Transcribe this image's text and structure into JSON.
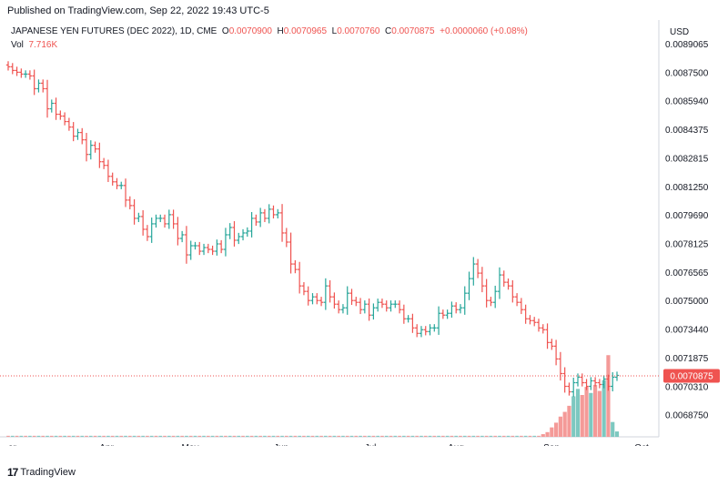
{
  "header": {
    "published": "Published on TradingView.com, Sep 22, 2022 19:43 UTC-5"
  },
  "legend": {
    "symbol": "JAPANESE YEN FUTURES (DEC 2022), 1D, CME",
    "o_label": "O",
    "o_value": "0.0070900",
    "h_label": "H",
    "h_value": "0.0070965",
    "l_label": "L",
    "l_value": "0.0070760",
    "c_label": "C",
    "c_value": "0.0070875",
    "change": "+0.0000060 (+0.08%)",
    "vol_label": "Vol",
    "vol_value": "7.716K"
  },
  "footer": {
    "brand": "TradingView",
    "logo": "17"
  },
  "colors": {
    "up": "#26a69a",
    "down": "#ef5350",
    "price_label_bg": "#ef5350",
    "axis_text": "#131722"
  },
  "chart_data": {
    "type": "ohlc",
    "currency": "USD",
    "last_price_label": "0.0070875",
    "y_ticks": [
      "0.0089065",
      "0.0087500",
      "0.0085940",
      "0.0084375",
      "0.0082815",
      "0.0081250",
      "0.0079690",
      "0.0078125",
      "0.0076565",
      "0.0075000",
      "0.0073440",
      "0.0071875",
      "0.0070310",
      "0.0068750"
    ],
    "x_ticks": [
      "ar",
      "Apr",
      "May",
      "Jun",
      "Jul",
      "Aug",
      "Sep",
      "Oct"
    ],
    "ylim": [
      0.0067,
      0.00895
    ],
    "closes": [
      0.00878,
      0.00876,
      0.00875,
      0.00874,
      0.00874,
      0.00873,
      0.00866,
      0.00869,
      0.00866,
      0.00855,
      0.00858,
      0.00852,
      0.00851,
      0.00848,
      0.00845,
      0.0084,
      0.00842,
      0.00838,
      0.0083,
      0.00835,
      0.00833,
      0.00826,
      0.00824,
      0.00818,
      0.00815,
      0.00813,
      0.00813,
      0.00805,
      0.00802,
      0.00795,
      0.00796,
      0.00789,
      0.00785,
      0.00792,
      0.00795,
      0.00795,
      0.00792,
      0.00797,
      0.00792,
      0.00784,
      0.00786,
      0.00775,
      0.0078,
      0.0078,
      0.00777,
      0.00779,
      0.00778,
      0.00777,
      0.00781,
      0.00778,
      0.00786,
      0.0079,
      0.00783,
      0.00785,
      0.00787,
      0.00788,
      0.00795,
      0.00793,
      0.00798,
      0.00795,
      0.008,
      0.00797,
      0.00798,
      0.00787,
      0.00782,
      0.0077,
      0.00767,
      0.00758,
      0.00755,
      0.0075,
      0.00752,
      0.0075,
      0.00749,
      0.00758,
      0.00752,
      0.00748,
      0.00745,
      0.00746,
      0.00754,
      0.0075,
      0.00749,
      0.00745,
      0.00748,
      0.00742,
      0.00746,
      0.00749,
      0.00748,
      0.00746,
      0.00748,
      0.00748,
      0.00745,
      0.0074,
      0.0074,
      0.00735,
      0.00732,
      0.00734,
      0.00733,
      0.00735,
      0.00735,
      0.00743,
      0.00742,
      0.00743,
      0.00747,
      0.00745,
      0.00746,
      0.00754,
      0.00762,
      0.0077,
      0.00765,
      0.00758,
      0.0075,
      0.00749,
      0.00755,
      0.00764,
      0.0076,
      0.00758,
      0.00752,
      0.00749,
      0.00745,
      0.0074,
      0.00739,
      0.00738,
      0.00735,
      0.00734,
      0.00727,
      0.00725,
      0.00718,
      0.0071,
      0.00703,
      0.007,
      0.00705,
      0.00708,
      0.00705,
      0.00703,
      0.00706,
      0.00705,
      0.00704,
      0.00707,
      0.00703,
      0.00708,
      0.00709
    ],
    "volume_end": [
      0.4,
      0.7,
      1.4,
      2.1,
      3.0,
      3.7,
      4.6,
      6.0,
      7.1,
      6.2,
      7.4,
      6.5,
      7.7,
      6.8,
      8.4,
      12.1,
      2.2,
      0.8
    ],
    "volume_max_k": 15.5
  }
}
